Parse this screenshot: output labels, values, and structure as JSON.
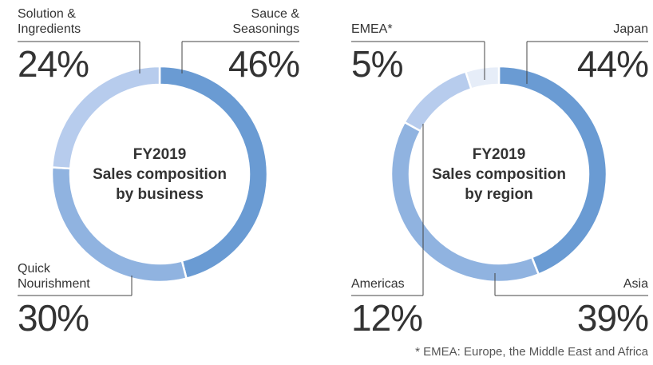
{
  "chart_data": [
    {
      "type": "donut",
      "center_text": [
        "FY2019",
        "Sales composition",
        "by business"
      ],
      "categories": [
        "Sauce & Seasonings",
        "Quick Nourishment",
        "Solution & Ingredients"
      ],
      "values": [
        46,
        30,
        24
      ],
      "value_labels": [
        "46%",
        "30%",
        "24%"
      ],
      "colors": [
        "#6a9bd3",
        "#90b3e0",
        "#b7cced"
      ]
    },
    {
      "type": "donut",
      "center_text": [
        "FY2019",
        "Sales composition",
        "by region"
      ],
      "categories": [
        "Japan",
        "Asia",
        "Americas",
        "EMEA*"
      ],
      "values": [
        44,
        39,
        12,
        5
      ],
      "value_labels": [
        "44%",
        "39%",
        "12%",
        "5%"
      ],
      "colors": [
        "#6a9bd3",
        "#90b3e0",
        "#b7cced",
        "#e6edf8"
      ]
    }
  ],
  "note": "* EMEA: Europe, the Middle East and Africa"
}
